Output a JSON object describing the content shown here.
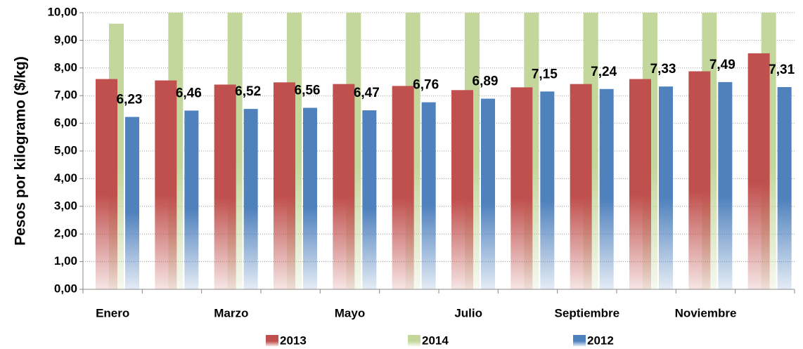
{
  "chart_data": {
    "type": "bar",
    "y_label": "Pesos  por kilogramo ($/kg)",
    "categories": [
      "Enero",
      null,
      "Marzo",
      null,
      "Mayo",
      null,
      "Julio",
      null,
      "Septiembre",
      null,
      "Noviembre",
      null
    ],
    "series": [
      {
        "name": "2013",
        "color": "#c0504d",
        "values": [
          7.6,
          7.55,
          7.4,
          7.48,
          7.42,
          7.35,
          7.2,
          7.3,
          7.42,
          7.6,
          7.88,
          8.53
        ]
      },
      {
        "name": "2014",
        "color": "#c3d69b",
        "values": [
          9.6,
          10,
          10,
          10,
          10,
          10,
          10,
          10,
          10,
          10,
          10,
          10
        ]
      },
      {
        "name": "2012",
        "color": "#4f81bd",
        "values": [
          6.23,
          6.46,
          6.52,
          6.56,
          6.47,
          6.76,
          6.89,
          7.15,
          7.24,
          7.33,
          7.49,
          7.31
        ],
        "value_labels": [
          "6,23",
          "6,46",
          "6,52",
          "6,56",
          "6,47",
          "6,76",
          "6,89",
          "7,15",
          "7,24",
          "7,33",
          "7,49",
          "7,31"
        ]
      }
    ],
    "ylim": [
      0,
      10
    ],
    "yticks": [
      {
        "value": 0,
        "label": "0,00"
      },
      {
        "value": 1,
        "label": "1,00"
      },
      {
        "value": 2,
        "label": "2,00"
      },
      {
        "value": 3,
        "label": "3,00"
      },
      {
        "value": 4,
        "label": "4,00"
      },
      {
        "value": 5,
        "label": "5,00"
      },
      {
        "value": 6,
        "label": "6,00"
      },
      {
        "value": 7,
        "label": "7,00"
      },
      {
        "value": 8,
        "label": "8,00"
      },
      {
        "value": 9,
        "label": "9,00"
      },
      {
        "value": 10,
        "label": "10,00"
      }
    ],
    "grid": true,
    "legend": "bottom"
  }
}
